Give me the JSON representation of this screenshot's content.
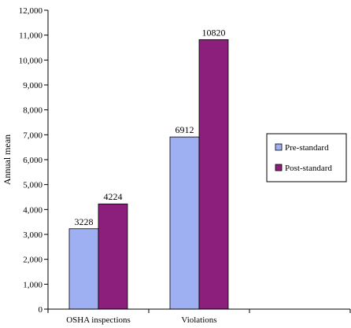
{
  "chart_data": {
    "type": "bar",
    "categories": [
      "OSHA inspections",
      "Violations"
    ],
    "series": [
      {
        "name": "Pre-standard",
        "values": [
          3228,
          6912
        ],
        "color": "#9fb0f2"
      },
      {
        "name": "Post-standard",
        "values": [
          4224,
          10820
        ],
        "color": "#8b1f7b"
      }
    ],
    "ylabel": "Annual mean",
    "ylim": [
      0,
      12000
    ],
    "ytick_labels": [
      "0",
      "1,000",
      "2,000",
      "3,000",
      "4,000",
      "5,000",
      "6,000",
      "7,000",
      "8,000",
      "9,000",
      "10,000",
      "11,000",
      "12,000"
    ],
    "data_labels": [
      [
        "3228",
        "6912"
      ],
      [
        "4224",
        "10820"
      ]
    ],
    "grid": false,
    "legend_position": "right"
  }
}
